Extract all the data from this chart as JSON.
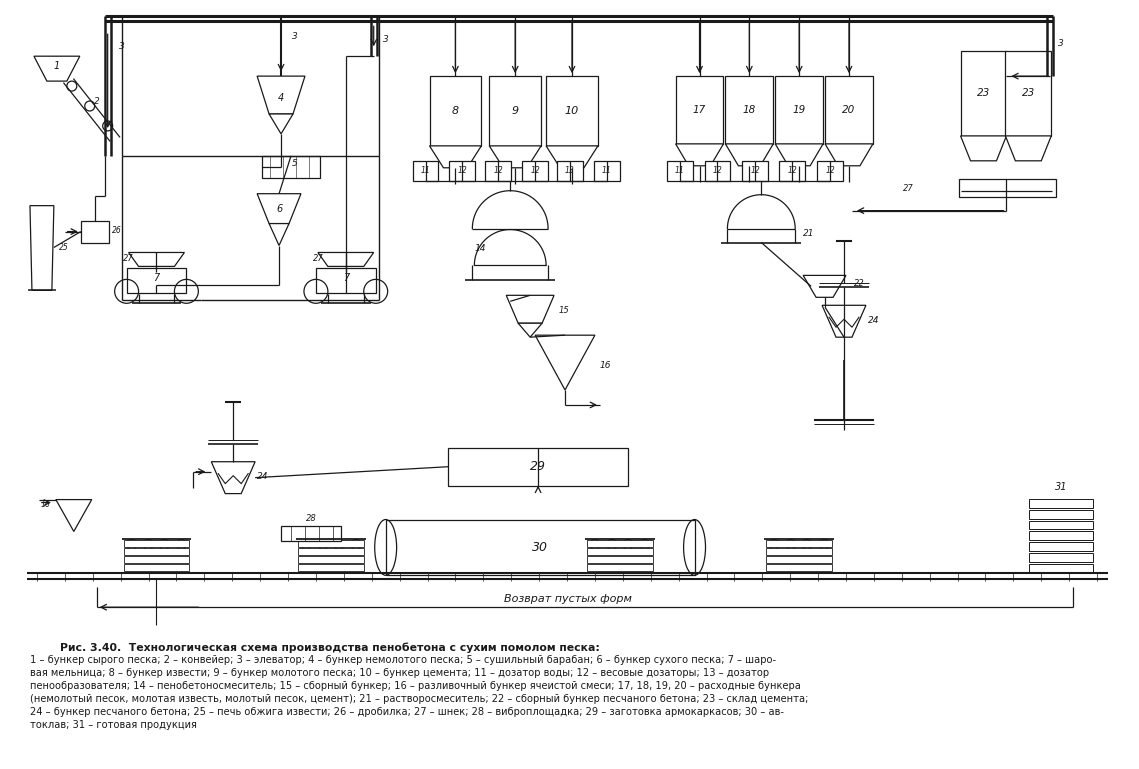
{
  "title": "",
  "background_color": "#ffffff",
  "fig_width": 11.39,
  "fig_height": 7.69,
  "caption_title": "Рис. 3.40.  Технологическая схема производства пенобетона с сухим помолом песка:",
  "caption_lines": [
    "1 – бункер сырого песка; 2 – конвейер; 3 – элеватор; 4 – бункер немолотого песка; 5 – сушильный барабан; 6 – бункер сухого песка; 7 – шаро-",
    "вая мельница; 8 – бункер извести; 9 – бункер молотого песка; 10 – бункер цемента; 11 – дозатор воды; 12 – весовые дозаторы; 13 – дозатор",
    "пенообразователя; 14 – пенобетоносмеситель; 15 – сборный бункер; 16 – разливочный бункер ячеистой смеси; 17, 18, 19, 20 – расходные бункера",
    "(немолотый песок, молотая известь, молотый песок, цемент); 21 – растворосмеситель; 22 – сборный бункер песчаного бетона; 23 – склад цемента;",
    "24 – бункер песчаного бетона; 25 – печь обжига извести; 26 – дробилка; 27 – шнек; 28 – виброплощадка; 29 – заготовка армокаркасов; 30 – ав-",
    "токлав; 31 – готовая продукция"
  ],
  "line_color": "#1a1a1a",
  "text_color": "#1a1a1a"
}
